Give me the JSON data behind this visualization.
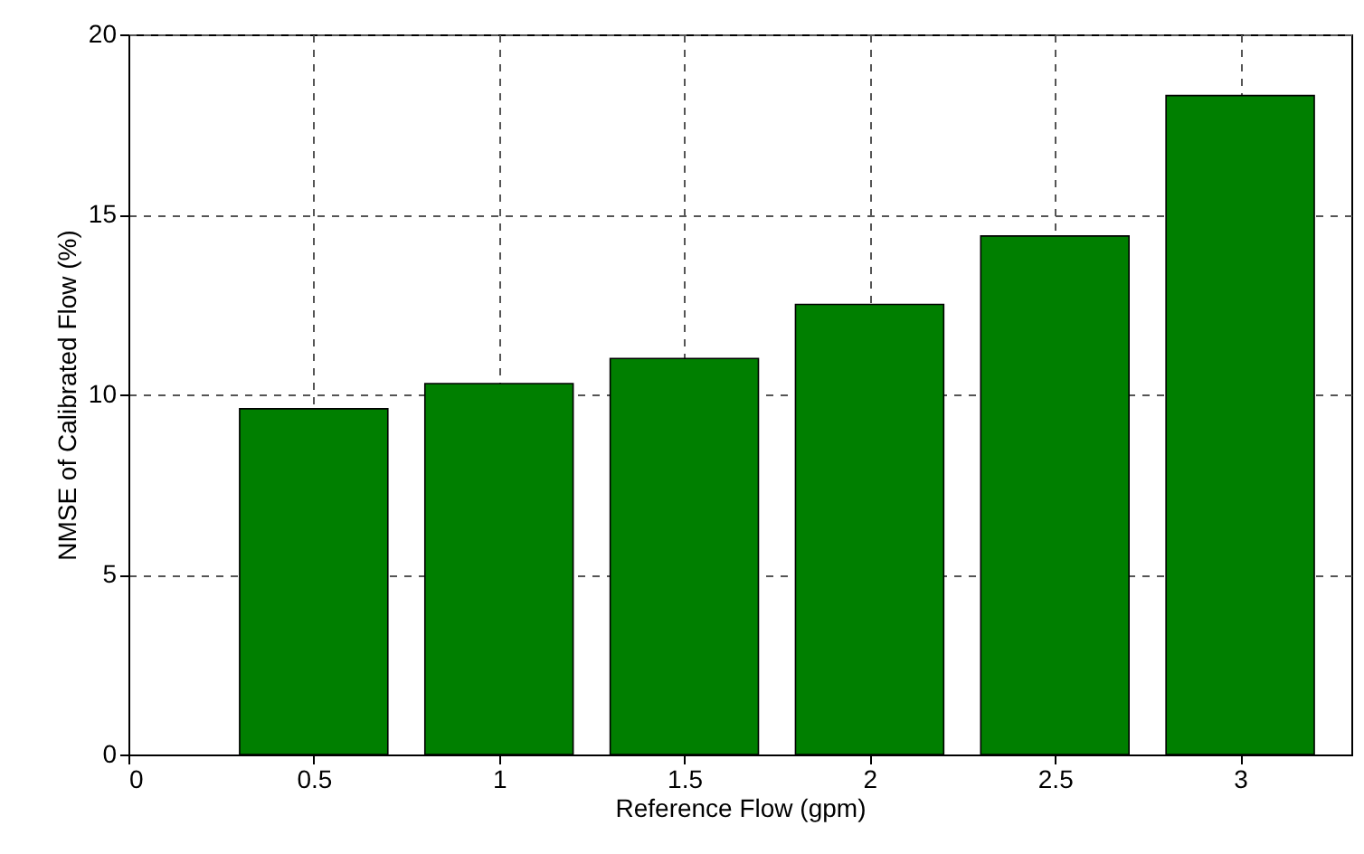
{
  "chart_data": {
    "type": "bar",
    "xlabel": "Reference Flow (gpm)",
    "ylabel": "NMSE of Calibrated Flow (%)",
    "x": [
      0.5,
      1,
      1.5,
      2,
      2.5,
      3
    ],
    "values": [
      9.6,
      10.3,
      11.0,
      12.5,
      14.4,
      18.3
    ],
    "color": "#007f00",
    "xlim": [
      0,
      3.3
    ],
    "xticks": [
      0,
      0.5,
      1,
      1.5,
      2,
      2.5,
      3
    ],
    "ylim": [
      0,
      20
    ],
    "yticks": [
      0,
      5,
      10,
      15,
      20
    ],
    "grid": true
  }
}
